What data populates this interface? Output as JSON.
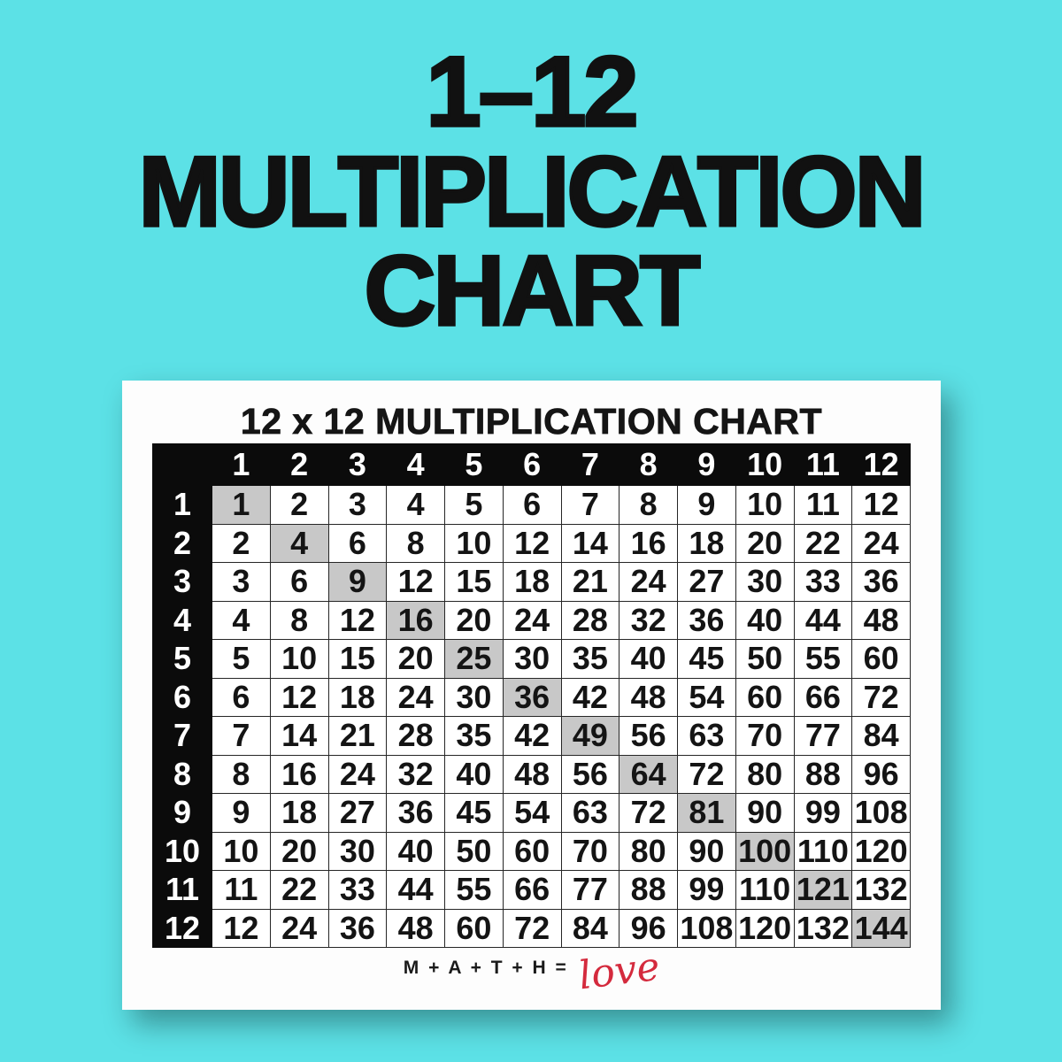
{
  "poster": {
    "title_line1": "1–12",
    "title_line2": "MULTIPLICATION",
    "title_line3": "CHART",
    "background_color": "#5ce1e6",
    "text_color": "#111111"
  },
  "chart_data": {
    "type": "table",
    "title": "12 x 12 MULTIPLICATION CHART",
    "column_headers": [
      "1",
      "2",
      "3",
      "4",
      "5",
      "6",
      "7",
      "8",
      "9",
      "10",
      "11",
      "12"
    ],
    "row_headers": [
      "1",
      "2",
      "3",
      "4",
      "5",
      "6",
      "7",
      "8",
      "9",
      "10",
      "11",
      "12"
    ],
    "rows": [
      [
        1,
        2,
        3,
        4,
        5,
        6,
        7,
        8,
        9,
        10,
        11,
        12
      ],
      [
        2,
        4,
        6,
        8,
        10,
        12,
        14,
        16,
        18,
        20,
        22,
        24
      ],
      [
        3,
        6,
        9,
        12,
        15,
        18,
        21,
        24,
        27,
        30,
        33,
        36
      ],
      [
        4,
        8,
        12,
        16,
        20,
        24,
        28,
        32,
        36,
        40,
        44,
        48
      ],
      [
        5,
        10,
        15,
        20,
        25,
        30,
        35,
        40,
        45,
        50,
        55,
        60
      ],
      [
        6,
        12,
        18,
        24,
        30,
        36,
        42,
        48,
        54,
        60,
        66,
        72
      ],
      [
        7,
        14,
        21,
        28,
        35,
        42,
        49,
        56,
        63,
        70,
        77,
        84
      ],
      [
        8,
        16,
        24,
        32,
        40,
        48,
        56,
        64,
        72,
        80,
        88,
        96
      ],
      [
        9,
        18,
        27,
        36,
        45,
        54,
        63,
        72,
        81,
        90,
        99,
        108
      ],
      [
        10,
        20,
        30,
        40,
        50,
        60,
        70,
        80,
        90,
        100,
        110,
        120
      ],
      [
        11,
        22,
        33,
        44,
        55,
        66,
        77,
        88,
        99,
        110,
        121,
        132
      ],
      [
        12,
        24,
        36,
        48,
        60,
        72,
        84,
        96,
        108,
        120,
        132,
        144
      ]
    ],
    "highlighted_values": [
      1,
      4,
      9,
      16,
      25,
      36,
      49,
      64,
      81,
      100,
      121,
      144
    ],
    "highlight_rule": "diagonal perfect-square cells shaded gray",
    "legend_position": "none",
    "colors": {
      "header_bg": "#0b0b0b",
      "header_text": "#ffffff",
      "cell_bg": "#ffffff",
      "cell_text": "#141414",
      "diagonal_bg": "#c8c8c8",
      "border": "#262626"
    }
  },
  "footer": {
    "prefix": "M + A + T + H =",
    "word": "love",
    "word_color": "#d42a3d"
  }
}
